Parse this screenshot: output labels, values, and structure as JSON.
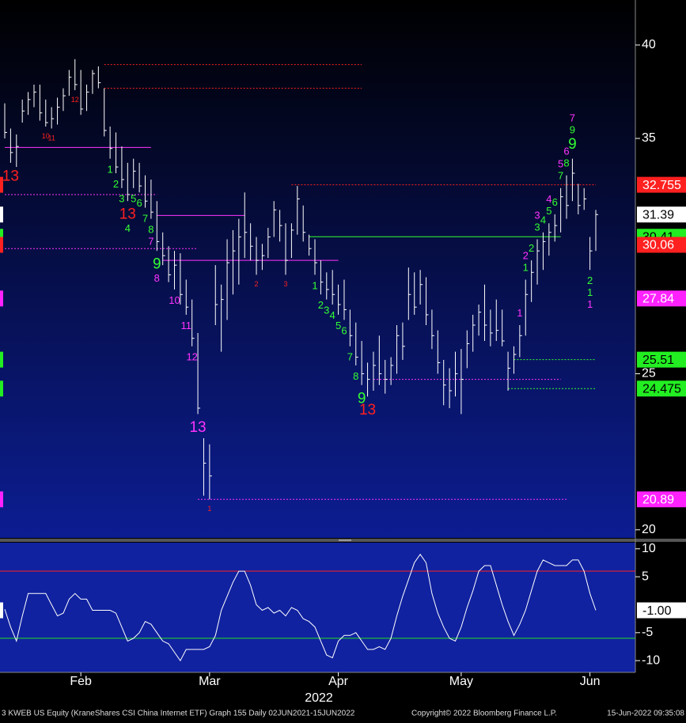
{
  "chart_data": [
    {
      "type": "ohlc",
      "color": "#ffffff",
      "log_scale": true,
      "ylim": [
        19.77,
        42.66
      ],
      "yticks": [
        20,
        25,
        35,
        40
      ],
      "categories": [
        null,
        null,
        null,
        null,
        null,
        null,
        null,
        null,
        null,
        null,
        null,
        null,
        null,
        "Feb",
        null,
        null,
        null,
        null,
        null,
        null,
        null,
        null,
        null,
        null,
        null,
        null,
        null,
        null,
        null,
        null,
        null,
        null,
        null,
        null,
        null,
        "Mar",
        null,
        null,
        null,
        null,
        null,
        null,
        null,
        null,
        null,
        null,
        null,
        null,
        null,
        null,
        null,
        null,
        null,
        null,
        null,
        null,
        null,
        "Apr",
        null,
        null,
        null,
        null,
        null,
        null,
        null,
        null,
        null,
        null,
        null,
        null,
        null,
        null,
        null,
        null,
        null,
        null,
        null,
        null,
        "May",
        null,
        null,
        null,
        null,
        null,
        null,
        null,
        null,
        null,
        null,
        null,
        null,
        null,
        null,
        null,
        null,
        null,
        null,
        null,
        null,
        null,
        "Jun",
        null
      ],
      "x_sublabel": "2022",
      "high": [
        36.8,
        35.5,
        35.2,
        37.0,
        37.4,
        37.8,
        37.8,
        37.0,
        36.6,
        37.1,
        37.6,
        38.6,
        39.2,
        38.6,
        37.8,
        38.6,
        38.8,
        37.6,
        35.6,
        35.3,
        34.6,
        33.8,
        34.0,
        33.8,
        33.2,
        33.0,
        32.0,
        30.6,
        30.0,
        29.8,
        29.7,
        28.6,
        27.8,
        26.5,
        22.8,
        22.6,
        29.2,
        28.4,
        30.3,
        30.7,
        31.2,
        32.4,
        31.0,
        30.4,
        30.1,
        30.8,
        32.0,
        31.6,
        31.0,
        31.0,
        32.7,
        31.8,
        30.5,
        30.3,
        29.4,
        28.9,
        29.0,
        28.4,
        28.6,
        27.4,
        26.9,
        26.2,
        25.4,
        25.8,
        26.4,
        25.5,
        25.6,
        26.8,
        26.9,
        29.1,
        28.9,
        29.0,
        28.7,
        27.4,
        26.6,
        25.5,
        25.2,
        25.8,
        25.9,
        26.6,
        27.2,
        27.6,
        28.4,
        27.4,
        27.8,
        27.4,
        25.8,
        26.0,
        26.8,
        28.6,
        29.4,
        30.3,
        30.6,
        31.0,
        31.4,
        32.6,
        33.2,
        34.0,
        32.8,
        32.6,
        30.4,
        31.6
      ],
      "low": [
        35.0,
        33.8,
        33.6,
        35.8,
        36.2,
        36.6,
        35.9,
        35.6,
        35.5,
        35.7,
        36.4,
        37.2,
        37.5,
        36.2,
        36.4,
        37.3,
        37.6,
        35.1,
        34.0,
        33.3,
        32.6,
        32.0,
        32.6,
        32.4,
        31.7,
        31.2,
        29.8,
        29.2,
        28.5,
        28.2,
        27.6,
        27.2,
        26.0,
        23.6,
        21.0,
        20.89,
        26.8,
        25.8,
        27.0,
        28.0,
        28.4,
        29.5,
        29.4,
        28.8,
        29.0,
        29.5,
        30.4,
        30.2,
        28.8,
        29.5,
        30.5,
        30.2,
        29.6,
        28.8,
        28.0,
        27.8,
        27.6,
        27.2,
        27.0,
        26.0,
        25.3,
        24.6,
        24.2,
        24.4,
        24.6,
        24.3,
        24.6,
        25.0,
        25.5,
        27.0,
        27.2,
        27.6,
        26.8,
        25.9,
        25.0,
        23.9,
        23.8,
        24.2,
        23.6,
        25.2,
        25.8,
        26.4,
        26.2,
        26.0,
        26.2,
        26.0,
        24.4,
        25.0,
        25.6,
        26.4,
        27.7,
        28.4,
        29.0,
        29.6,
        30.2,
        30.6,
        31.2,
        32.0,
        31.4,
        31.6,
        29.0,
        29.8
      ],
      "close": [
        35.3,
        34.3,
        34.6,
        36.4,
        37.0,
        37.4,
        36.3,
        35.8,
        36.0,
        36.6,
        37.2,
        38.2,
        37.8,
        36.5,
        37.4,
        38.4,
        37.9,
        35.4,
        34.5,
        33.6,
        33.0,
        32.3,
        33.4,
        32.7,
        32.0,
        31.5,
        30.2,
        29.6,
        28.8,
        29.2,
        28.0,
        27.5,
        26.3,
        23.8,
        22.0,
        21.6,
        27.6,
        27.8,
        29.3,
        29.8,
        30.4,
        30.6,
        30.0,
        29.4,
        29.6,
        30.4,
        31.6,
        30.9,
        29.4,
        30.7,
        32.1,
        30.6,
        29.9,
        29.3,
        28.5,
        28.2,
        28.0,
        27.6,
        27.4,
        26.4,
        25.6,
        25.0,
        24.8,
        25.3,
        25.0,
        24.8,
        25.3,
        26.4,
        26.0,
        28.0,
        27.5,
        28.4,
        27.2,
        26.4,
        25.4,
        24.6,
        24.4,
        25.0,
        24.8,
        26.1,
        26.8,
        27.3,
        26.8,
        26.5,
        26.6,
        26.2,
        25.2,
        25.7,
        26.4,
        28.0,
        28.9,
        29.8,
        30.2,
        30.6,
        30.9,
        32.2,
        31.8,
        33.3,
        31.8,
        32.1,
        29.8,
        31.39
      ],
      "levels": [
        {
          "value": 38.9,
          "from": 17,
          "to": 61,
          "color": "#ff2020",
          "style": "dotted"
        },
        {
          "value": 37.6,
          "from": 17,
          "to": 61,
          "color": "#ff2020",
          "style": "dotted"
        },
        {
          "value": 34.55,
          "from": 0,
          "to": 25,
          "color": "#ff33ff",
          "style": "solid"
        },
        {
          "value": 32.3,
          "from": 0,
          "to": 26,
          "color": "#ff33ff",
          "style": "dotted"
        },
        {
          "value": 31.35,
          "from": 26,
          "to": 41,
          "color": "#ff33ff",
          "style": "solid"
        },
        {
          "value": 29.9,
          "from": 0,
          "to": 33,
          "color": "#ff33ff",
          "style": "dotted"
        },
        {
          "value": 29.4,
          "from": 27,
          "to": 57,
          "color": "#ff33ff",
          "style": "solid"
        },
        {
          "value": 32.755,
          "from": 49,
          "to": 101,
          "color": "#ff2020",
          "style": "dotted"
        },
        {
          "value": 30.41,
          "from": 52,
          "to": 95,
          "color": "#33ff33",
          "style": "solid"
        },
        {
          "value": 25.51,
          "from": 87,
          "to": 101,
          "color": "#33ff33",
          "style": "dotted"
        },
        {
          "value": 24.475,
          "from": 86,
          "to": 101,
          "color": "#33ff33",
          "style": "dotted"
        },
        {
          "value": 24.8,
          "from": 63,
          "to": 95,
          "color": "#ff33ff",
          "style": "dotted"
        },
        {
          "value": 20.89,
          "from": 33,
          "to": 96,
          "color": "#ff33ff",
          "style": "dotted"
        }
      ],
      "price_labels": [
        {
          "value": 32.755,
          "label": "32.755",
          "color": "#ff2020",
          "text_color": "#ffffff"
        },
        {
          "value": 31.39,
          "label": "31.39",
          "color": "#ffffff",
          "text_color": "#000000"
        },
        {
          "value": 30.41,
          "label": "30.41",
          "color": "#22ee22",
          "text_color": "#000000"
        },
        {
          "value": 30.06,
          "label": "30.06",
          "color": "#ff2020",
          "text_color": "#ffffff"
        },
        {
          "value": 27.84,
          "label": "27.84",
          "color": "#ff22ff",
          "text_color": "#ffffff"
        },
        {
          "value": 25.51,
          "label": "25.51",
          "color": "#22ee22",
          "text_color": "#000000"
        },
        {
          "value": 24.475,
          "label": "24.475",
          "color": "#22ee22",
          "text_color": "#000000"
        },
        {
          "value": 20.89,
          "label": "20.89",
          "color": "#ff22ff",
          "text_color": "#ffffff"
        }
      ],
      "annotations": [
        {
          "bar": 1,
          "text": "13",
          "color": "#ff2020",
          "place": "below",
          "size": "large"
        },
        {
          "bar": 7,
          "text": "10",
          "color": "#ff2020",
          "place": "below",
          "size": "tiny"
        },
        {
          "bar": 8,
          "text": "11",
          "color": "#ff2020",
          "place": "below",
          "size": "tiny"
        },
        {
          "bar": 12,
          "text": "12",
          "color": "#ff2020",
          "place": "below",
          "size": "tiny"
        },
        {
          "bar": 18,
          "text": "1",
          "color": "#33ff33",
          "place": "below",
          "size": "small"
        },
        {
          "bar": 19,
          "text": "2",
          "color": "#33ff33",
          "place": "below",
          "size": "small"
        },
        {
          "bar": 20,
          "text": "3",
          "color": "#33ff33",
          "place": "below",
          "size": "small"
        },
        {
          "bar": 21,
          "text": "13",
          "color": "#ff2020",
          "place": "below",
          "size": "large"
        },
        {
          "bar": 21,
          "text": "4",
          "color": "#33ff33",
          "place": "below",
          "size": "small"
        },
        {
          "bar": 22,
          "text": "5",
          "color": "#33ff33",
          "place": "below",
          "size": "small"
        },
        {
          "bar": 23,
          "text": "6",
          "color": "#33ff33",
          "place": "below",
          "size": "small"
        },
        {
          "bar": 24,
          "text": "7",
          "color": "#33ff33",
          "place": "below",
          "size": "small"
        },
        {
          "bar": 25,
          "text": "8",
          "color": "#33ff33",
          "place": "below",
          "size": "small"
        },
        {
          "bar": 25,
          "text": "7",
          "color": "#ff33ff",
          "place": "below",
          "size": "small"
        },
        {
          "bar": 26,
          "text": "9",
          "color": "#33ff33",
          "place": "below",
          "size": "large"
        },
        {
          "bar": 26,
          "text": "8",
          "color": "#ff33ff",
          "place": "below",
          "size": "small"
        },
        {
          "bar": 29,
          "text": "10",
          "color": "#ff33ff",
          "place": "below",
          "size": "small"
        },
        {
          "bar": 31,
          "text": "11",
          "color": "#ff33ff",
          "place": "below",
          "size": "small"
        },
        {
          "bar": 32,
          "text": "12",
          "color": "#ff33ff",
          "place": "below",
          "size": "small"
        },
        {
          "bar": 33,
          "text": "13",
          "color": "#ff33ff",
          "place": "below",
          "size": "large"
        },
        {
          "bar": 35,
          "text": "1",
          "color": "#ff2020",
          "place": "below",
          "size": "tiny"
        },
        {
          "bar": 43,
          "text": "2",
          "color": "#ff2020",
          "place": "below",
          "size": "tiny"
        },
        {
          "bar": 48,
          "text": "3",
          "color": "#ff2020",
          "place": "below",
          "size": "tiny"
        },
        {
          "bar": 53,
          "text": "1",
          "color": "#33ff33",
          "place": "below",
          "size": "small"
        },
        {
          "bar": 54,
          "text": "2",
          "color": "#33ff33",
          "place": "below",
          "size": "small"
        },
        {
          "bar": 55,
          "text": "3",
          "color": "#33ff33",
          "place": "below",
          "size": "small"
        },
        {
          "bar": 56,
          "text": "4",
          "color": "#33ff33",
          "place": "below",
          "size": "small"
        },
        {
          "bar": 57,
          "text": "5",
          "color": "#33ff33",
          "place": "below",
          "size": "small"
        },
        {
          "bar": 58,
          "text": "6",
          "color": "#33ff33",
          "place": "below",
          "size": "small"
        },
        {
          "bar": 59,
          "text": "7",
          "color": "#33ff33",
          "place": "below",
          "size": "small"
        },
        {
          "bar": 60,
          "text": "8",
          "color": "#33ff33",
          "place": "below",
          "size": "small"
        },
        {
          "bar": 61,
          "text": "9",
          "color": "#33ff33",
          "place": "below",
          "size": "large"
        },
        {
          "bar": 62,
          "text": "13",
          "color": "#ff2020",
          "place": "below",
          "size": "large"
        },
        {
          "bar": 88,
          "text": "1",
          "color": "#ff33ff",
          "place": "above",
          "size": "small"
        },
        {
          "bar": 89,
          "text": "1",
          "color": "#33ff33",
          "place": "above",
          "size": "small"
        },
        {
          "bar": 89,
          "text": "2",
          "color": "#ff33ff",
          "place": "above",
          "size": "small"
        },
        {
          "bar": 90,
          "text": "2",
          "color": "#33ff33",
          "place": "above",
          "size": "small"
        },
        {
          "bar": 91,
          "text": "3",
          "color": "#33ff33",
          "place": "above",
          "size": "small"
        },
        {
          "bar": 91,
          "text": "3",
          "color": "#ff33ff",
          "place": "above",
          "size": "small"
        },
        {
          "bar": 92,
          "text": "4",
          "color": "#33ff33",
          "place": "above",
          "size": "small"
        },
        {
          "bar": 93,
          "text": "5",
          "color": "#33ff33",
          "place": "above",
          "size": "small"
        },
        {
          "bar": 93,
          "text": "4",
          "color": "#ff33ff",
          "place": "above",
          "size": "small"
        },
        {
          "bar": 94,
          "text": "6",
          "color": "#33ff33",
          "place": "above",
          "size": "small"
        },
        {
          "bar": 95,
          "text": "7",
          "color": "#33ff33",
          "place": "above",
          "size": "small"
        },
        {
          "bar": 95,
          "text": "5",
          "color": "#ff33ff",
          "place": "above",
          "size": "small"
        },
        {
          "bar": 96,
          "text": "8",
          "color": "#33ff33",
          "place": "above",
          "size": "small"
        },
        {
          "bar": 96,
          "text": "6",
          "color": "#ff33ff",
          "place": "above",
          "size": "small"
        },
        {
          "bar": 97,
          "text": "9",
          "color": "#33ff33",
          "place": "above",
          "size": "large"
        },
        {
          "bar": 97,
          "text": "9",
          "color": "#33ff33",
          "place": "above",
          "size": "small"
        },
        {
          "bar": 97,
          "text": "7",
          "color": "#ff33ff",
          "place": "above",
          "size": "small"
        },
        {
          "bar": 100,
          "text": "2",
          "color": "#33ff33",
          "place": "below",
          "size": "small"
        },
        {
          "bar": 100,
          "text": "1",
          "color": "#33ff33",
          "place": "below",
          "size": "small"
        },
        {
          "bar": 100,
          "text": "1",
          "color": "#ff33ff",
          "place": "below",
          "size": "small"
        }
      ]
    },
    {
      "type": "line",
      "color": "#ffffff",
      "ylim": [
        -12.1,
        11.1
      ],
      "yticks": [
        -10,
        -5,
        5,
        10
      ],
      "values": [
        -0.8,
        -4,
        -6.5,
        -2,
        2,
        2,
        2,
        2,
        0,
        -2,
        -1.5,
        1,
        2,
        1,
        1,
        -1,
        -1,
        -1,
        -1,
        -1.5,
        -4,
        -6.5,
        -6,
        -5,
        -3,
        -3.5,
        -5,
        -6.5,
        -7,
        -8.5,
        -10,
        -8,
        -8,
        -8,
        -8,
        -7.5,
        -5.5,
        -1,
        1.5,
        4,
        6,
        6,
        3.5,
        0,
        -1,
        -0.5,
        -1.5,
        -1,
        -2,
        -0.5,
        -1,
        -2.5,
        -3,
        -4,
        -6.5,
        -9,
        -9.5,
        -6.5,
        -5.5,
        -5.5,
        -5,
        -6.5,
        -8,
        -8,
        -7.5,
        -8,
        -6,
        -2,
        1.5,
        4.5,
        7.5,
        9,
        7.5,
        2,
        -1.5,
        -4,
        -6,
        -6.5,
        -4,
        -0.5,
        2.5,
        6,
        7,
        7,
        3.5,
        0,
        -3,
        -5.5,
        -3.5,
        -1,
        2.5,
        6,
        8,
        7.5,
        7,
        7,
        7,
        8,
        8,
        6,
        2,
        -1
      ],
      "bands": [
        {
          "value": 6,
          "color": "#ff2020"
        },
        {
          "value": -6,
          "color": "#22dd22"
        }
      ],
      "price_labels": [
        {
          "value": -1,
          "label": "-1.00",
          "color": "#ffffff",
          "text_color": "#000000"
        }
      ]
    }
  ],
  "footer": {
    "left": "3 KWEB US Equity (KraneShares CSI China Internet ETF) Graph 155  Daily 02JUN2021-15JUN2022",
    "center": "Copyright© 2022 Bloomberg Finance L.P.",
    "right": "15-Jun-2022 09:35:08"
  }
}
